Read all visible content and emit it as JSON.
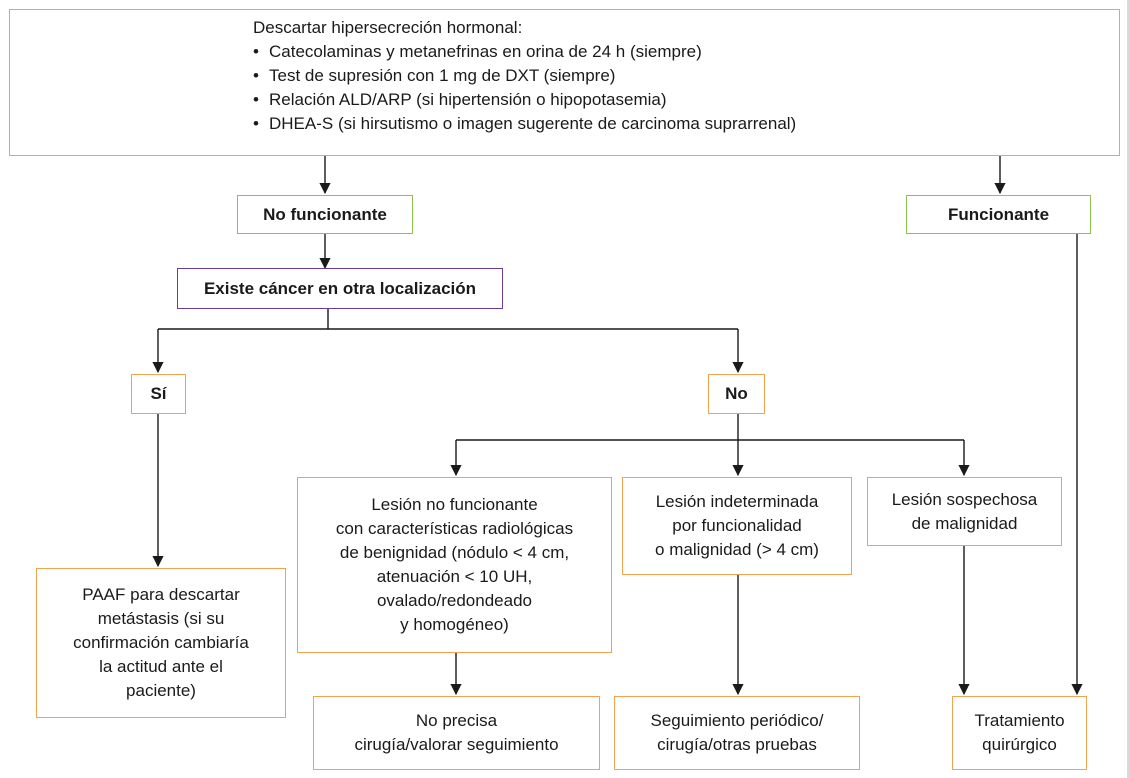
{
  "top": {
    "title": "Descartar hipersecreción hormonal:",
    "items": [
      "Catecolaminas y metanefrinas en orina de 24 h (siempre)",
      "Test de supresión con 1 mg de DXT (siempre)",
      "Relación ALD/ARP (si hipertensión o hipopotasemia)",
      "DHEA-S (si hirsutismo o imagen sugerente de carcinoma suprarrenal)"
    ]
  },
  "no_funcionante": "No funcionante",
  "funcionante": "Funcionante",
  "cancer_question": "Existe cáncer en otra localización",
  "si": "Sí",
  "no": "No",
  "paaf": "PAAF para descartar\nmetástasis (si su\nconfirmación cambiaría\nla actitud ante el\npaciente)",
  "lesion_no_funcionante": "Lesión no funcionante\ncon características radiológicas\nde benignidad (nódulo < 4 cm,\natenuación < 10 UH,\novalado/redondeado\ny homogéneo)",
  "lesion_indeterminada": "Lesión indeterminada\npor funcionalidad\no  malignidad (> 4 cm)",
  "lesion_sospechosa": "Lesión sospechosa\nde malignidad",
  "no_precisa": "No precisa\ncirugía/valorar seguimiento",
  "seguimiento": "Seguimiento periódico/\ncirugía/otras pruebas",
  "tratamiento": "Tratamiento\nquirúrgico",
  "colors": {
    "orange": "#f0a44e",
    "green": "#8bc34a",
    "purple": "#6a3d9a"
  }
}
